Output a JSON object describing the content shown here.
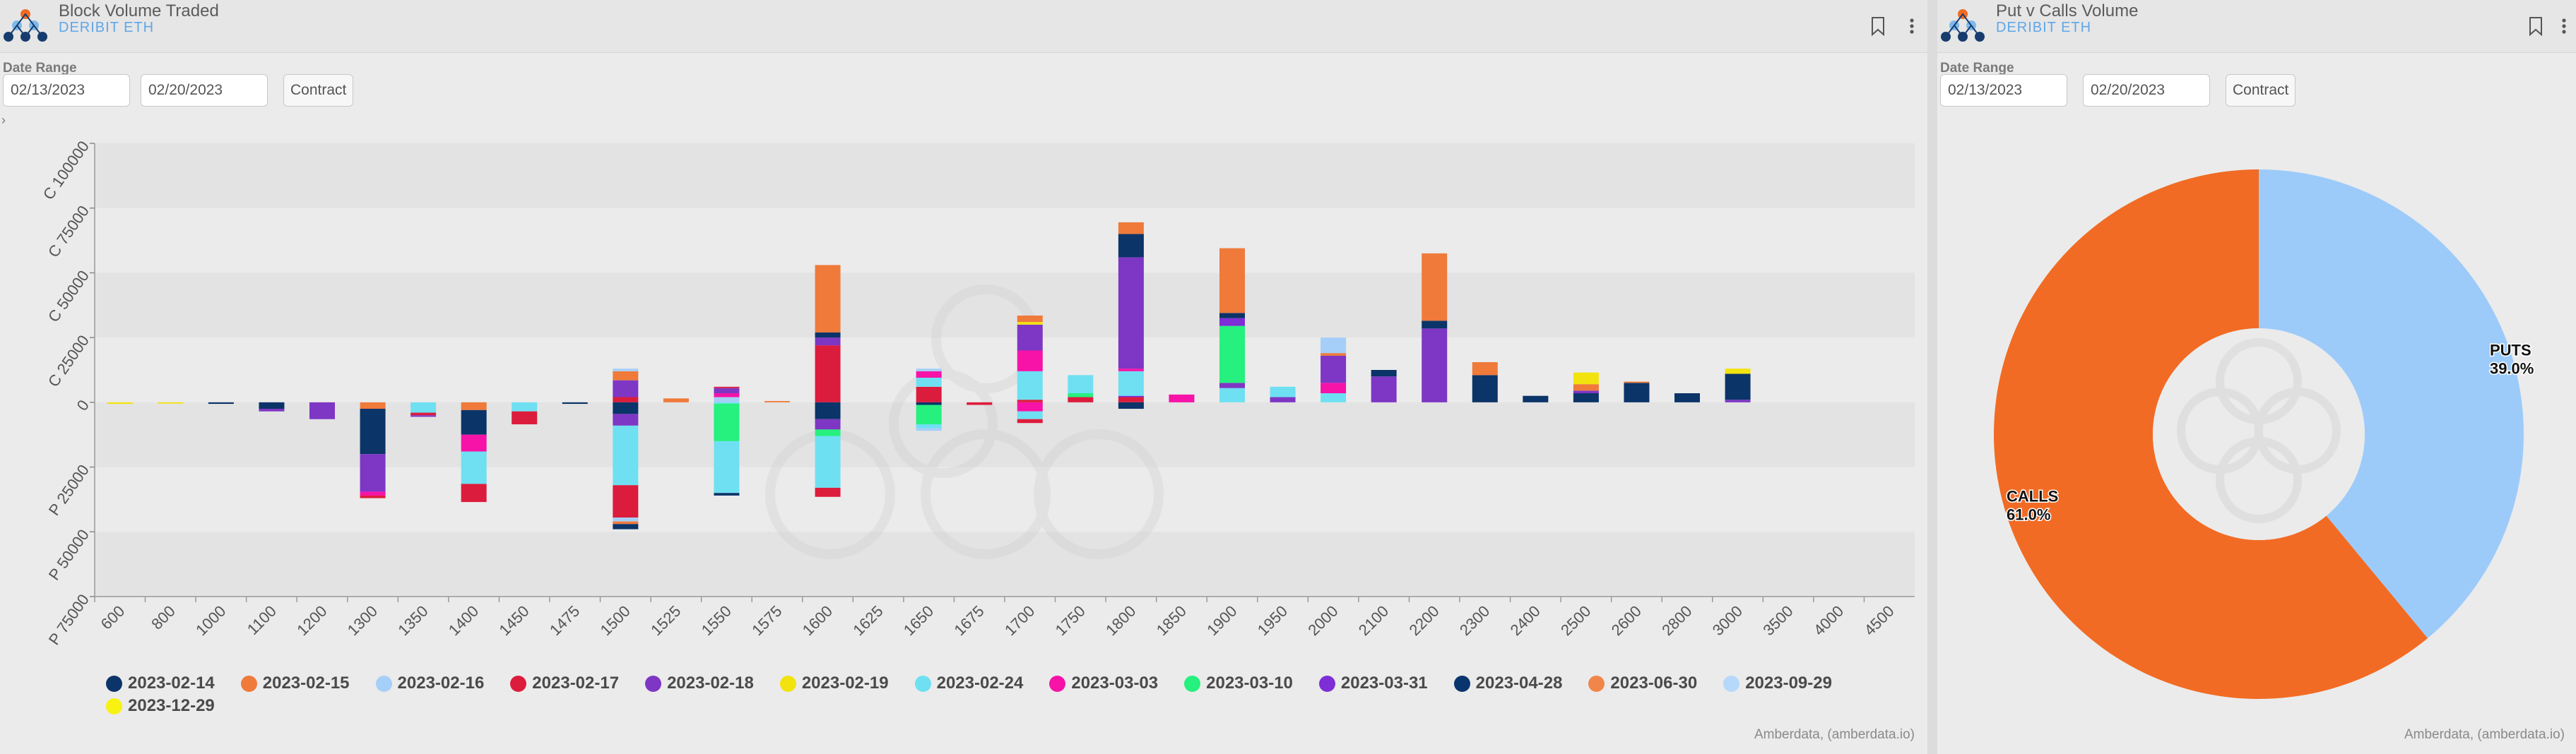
{
  "left_panel": {
    "title": "Block Volume Traded",
    "subtitle": "DERIBIT ETH",
    "date_range_label": "Date Range",
    "start_date": "02/13/2023",
    "end_date": "02/20/2023",
    "contract_button": "Contract",
    "credit": "Amberdata, (amberdata.io)",
    "icons": [
      "bookmark-icon",
      "more-vertical-icon",
      "amberdata-logo-icon",
      "expand-caret-icon"
    ]
  },
  "right_panel": {
    "title": "Put v Calls Volume",
    "subtitle": "DERIBIT ETH",
    "date_range_label": "Date Range",
    "start_date": "02/13/2023",
    "end_date": "02/20/2023",
    "contract_button": "Contract",
    "credit": "Amberdata, (amberdata.io)",
    "icons": [
      "bookmark-icon",
      "more-vertical-icon",
      "amberdata-logo-icon"
    ]
  },
  "colors": {
    "2023-02-14": "#0b3468",
    "2023-02-15": "#ef7a3a",
    "2023-02-16": "#a5cff8",
    "2023-02-17": "#dc1c3c",
    "2023-02-18": "#7e36c4",
    "2023-02-19": "#f2e30e",
    "2023-02-24": "#6ee0f2",
    "2023-03-03": "#f712a8",
    "2023-03-10": "#26f07e",
    "2023-03-31": "#7e2ed6",
    "2023-04-28": "#09356e",
    "2023-06-30": "#f0864a",
    "2023-09-29": "#b6d8fa",
    "2023-12-29": "#f7f212",
    "calls": "#f26b24",
    "puts": "#9ccbfa",
    "chart_band": "#e3e3e3"
  },
  "chart_data": [
    {
      "type": "bar",
      "stacked": true,
      "y_axis_ticks": [
        "C 100000",
        "C 75000",
        "C 50000",
        "C 25000",
        "0",
        "P 25000",
        "P 50000",
        "P 75000"
      ],
      "ylim": [
        -75000,
        100000
      ],
      "grid": "alternating bands",
      "legend_position": "bottom",
      "categories": [
        "600",
        "800",
        "1000",
        "1100",
        "1200",
        "1300",
        "1350",
        "1400",
        "1450",
        "1475",
        "1500",
        "1525",
        "1550",
        "1575",
        "1600",
        "1625",
        "1650",
        "1675",
        "1700",
        "1750",
        "1800",
        "1850",
        "1900",
        "1950",
        "2000",
        "2100",
        "2200",
        "2300",
        "2400",
        "2500",
        "2600",
        "2800",
        "3000",
        "3500",
        "4000",
        "4500"
      ],
      "legend": [
        "2023-02-14",
        "2023-02-15",
        "2023-02-16",
        "2023-02-17",
        "2023-02-18",
        "2023-02-19",
        "2023-02-24",
        "2023-03-03",
        "2023-03-10",
        "2023-03-31",
        "2023-04-28",
        "2023-06-30",
        "2023-09-29",
        "2023-12-29"
      ],
      "bars": [
        {
          "strike": "600",
          "segments": [
            {
              "expiry": "2023-02-19",
              "value": -600
            }
          ]
        },
        {
          "strike": "800",
          "segments": [
            {
              "expiry": "2023-02-19",
              "value": -500
            }
          ]
        },
        {
          "strike": "1000",
          "segments": [
            {
              "expiry": "2023-02-14",
              "value": -600
            }
          ]
        },
        {
          "strike": "1100",
          "segments": [
            {
              "expiry": "2023-02-14",
              "value": -2500
            },
            {
              "expiry": "2023-02-18",
              "value": -1000
            }
          ]
        },
        {
          "strike": "1200",
          "segments": [
            {
              "expiry": "2023-02-18",
              "value": -6500
            }
          ]
        },
        {
          "strike": "1300",
          "segments": [
            {
              "expiry": "2023-02-15",
              "value": -2500
            },
            {
              "expiry": "2023-02-14",
              "value": -17500
            },
            {
              "expiry": "2023-02-18",
              "value": -14500
            },
            {
              "expiry": "2023-03-03",
              "value": -1500
            },
            {
              "expiry": "2023-02-17",
              "value": -1000
            }
          ]
        },
        {
          "strike": "1350",
          "segments": [
            {
              "expiry": "2023-02-24",
              "value": -4000
            },
            {
              "expiry": "2023-02-17",
              "value": -1000
            },
            {
              "expiry": "2023-02-18",
              "value": -600
            }
          ]
        },
        {
          "strike": "1400",
          "segments": [
            {
              "expiry": "2023-02-15",
              "value": -3000
            },
            {
              "expiry": "2023-02-14",
              "value": -9500
            },
            {
              "expiry": "2023-03-03",
              "value": -6500
            },
            {
              "expiry": "2023-02-24",
              "value": -12500
            },
            {
              "expiry": "2023-02-17",
              "value": -7000
            }
          ]
        },
        {
          "strike": "1450",
          "segments": [
            {
              "expiry": "2023-02-24",
              "value": -3500
            },
            {
              "expiry": "2023-02-17",
              "value": -5000
            }
          ]
        },
        {
          "strike": "1475",
          "segments": [
            {
              "expiry": "2023-02-14",
              "value": -600
            }
          ]
        },
        {
          "strike": "1500",
          "segments": [
            {
              "expiry": "2023-02-17",
              "value": 2000
            },
            {
              "expiry": "2023-02-18",
              "value": 6500
            },
            {
              "expiry": "2023-02-15",
              "value": 3500
            },
            {
              "expiry": "2023-02-16",
              "value": 1000
            },
            {
              "expiry": "2023-02-14",
              "value": -4500
            },
            {
              "expiry": "2023-02-18",
              "value": -4500
            },
            {
              "expiry": "2023-02-24",
              "value": -23000
            },
            {
              "expiry": "2023-02-17",
              "value": -12500
            },
            {
              "expiry": "2023-02-16",
              "value": -1500
            },
            {
              "expiry": "2023-02-15",
              "value": -1000
            },
            {
              "expiry": "2023-02-14",
              "value": -2000
            }
          ]
        },
        {
          "strike": "1525",
          "segments": [
            {
              "expiry": "2023-02-15",
              "value": 1500
            }
          ]
        },
        {
          "strike": "1550",
          "segments": [
            {
              "expiry": "2023-02-16",
              "value": 2000
            },
            {
              "expiry": "2023-03-03",
              "value": 1500
            },
            {
              "expiry": "2023-02-18",
              "value": 2000
            },
            {
              "expiry": "2023-02-17",
              "value": 500
            },
            {
              "expiry": "2023-02-24",
              "value": -500
            },
            {
              "expiry": "2023-03-10",
              "value": -14500
            },
            {
              "expiry": "2023-02-24",
              "value": -20000
            },
            {
              "expiry": "2023-02-14",
              "value": -1000
            }
          ]
        },
        {
          "strike": "1575",
          "segments": [
            {
              "expiry": "2023-02-15",
              "value": 500
            }
          ]
        },
        {
          "strike": "1600",
          "segments": [
            {
              "expiry": "2023-02-17",
              "value": 22000
            },
            {
              "expiry": "2023-02-18",
              "value": 3000
            },
            {
              "expiry": "2023-02-14",
              "value": 2000
            },
            {
              "expiry": "2023-02-15",
              "value": 26000
            },
            {
              "expiry": "2023-02-14",
              "value": -6500
            },
            {
              "expiry": "2023-02-18",
              "value": -4000
            },
            {
              "expiry": "2023-03-10",
              "value": -2500
            },
            {
              "expiry": "2023-02-24",
              "value": -20000
            },
            {
              "expiry": "2023-02-17",
              "value": -3500
            }
          ]
        },
        {
          "strike": "1650",
          "segments": [
            {
              "expiry": "2023-02-17",
              "value": 6000
            },
            {
              "expiry": "2023-02-24",
              "value": 3500
            },
            {
              "expiry": "2023-03-03",
              "value": 2500
            },
            {
              "expiry": "2023-02-16",
              "value": 1000
            },
            {
              "expiry": "2023-02-14",
              "value": -1000
            },
            {
              "expiry": "2023-03-10",
              "value": -7500
            },
            {
              "expiry": "2023-02-24",
              "value": -1500
            },
            {
              "expiry": "2023-02-16",
              "value": -1000
            }
          ]
        },
        {
          "strike": "1675",
          "segments": [
            {
              "expiry": "2023-02-17",
              "value": -1000
            }
          ]
        },
        {
          "strike": "1700",
          "segments": [
            {
              "expiry": "2023-02-17",
              "value": 1000
            },
            {
              "expiry": "2023-02-24",
              "value": 11000
            },
            {
              "expiry": "2023-03-03",
              "value": 8000
            },
            {
              "expiry": "2023-02-18",
              "value": 10000
            },
            {
              "expiry": "2023-02-19",
              "value": 1000
            },
            {
              "expiry": "2023-02-15",
              "value": 2500
            },
            {
              "expiry": "2023-03-03",
              "value": -3500
            },
            {
              "expiry": "2023-02-24",
              "value": -3000
            },
            {
              "expiry": "2023-02-17",
              "value": -1500
            }
          ]
        },
        {
          "strike": "1750",
          "segments": [
            {
              "expiry": "2023-02-17",
              "value": 2000
            },
            {
              "expiry": "2023-03-10",
              "value": 1500
            },
            {
              "expiry": "2023-02-24",
              "value": 7000
            }
          ]
        },
        {
          "strike": "1800",
          "segments": [
            {
              "expiry": "2023-02-17",
              "value": 2000
            },
            {
              "expiry": "2023-03-31",
              "value": 500
            },
            {
              "expiry": "2023-02-24",
              "value": 9500
            },
            {
              "expiry": "2023-03-03",
              "value": 1000
            },
            {
              "expiry": "2023-02-18",
              "value": 43000
            },
            {
              "expiry": "2023-02-14",
              "value": 9000
            },
            {
              "expiry": "2023-02-15",
              "value": 4500
            },
            {
              "expiry": "2023-02-14",
              "value": -2500
            }
          ]
        },
        {
          "strike": "1850",
          "segments": [
            {
              "expiry": "2023-03-03",
              "value": 3000
            }
          ]
        },
        {
          "strike": "1900",
          "segments": [
            {
              "expiry": "2023-02-24",
              "value": 5500
            },
            {
              "expiry": "2023-02-18",
              "value": 2000
            },
            {
              "expiry": "2023-03-10",
              "value": 22000
            },
            {
              "expiry": "2023-03-31",
              "value": 3000
            },
            {
              "expiry": "2023-02-14",
              "value": 2000
            },
            {
              "expiry": "2023-02-15",
              "value": 25000
            }
          ]
        },
        {
          "strike": "1950",
          "segments": [
            {
              "expiry": "2023-02-18",
              "value": 2000
            },
            {
              "expiry": "2023-02-24",
              "value": 4000
            }
          ]
        },
        {
          "strike": "2000",
          "segments": [
            {
              "expiry": "2023-02-24",
              "value": 3500
            },
            {
              "expiry": "2023-03-03",
              "value": 4000
            },
            {
              "expiry": "2023-02-18",
              "value": 10500
            },
            {
              "expiry": "2023-02-15",
              "value": 1000
            },
            {
              "expiry": "2023-02-16",
              "value": 6000
            }
          ]
        },
        {
          "strike": "2100",
          "segments": [
            {
              "expiry": "2023-02-18",
              "value": 10000
            },
            {
              "expiry": "2023-02-14",
              "value": 2500
            }
          ]
        },
        {
          "strike": "2200",
          "segments": [
            {
              "expiry": "2023-02-18",
              "value": 28500
            },
            {
              "expiry": "2023-02-14",
              "value": 3000
            },
            {
              "expiry": "2023-02-15",
              "value": 26000
            }
          ]
        },
        {
          "strike": "2300",
          "segments": [
            {
              "expiry": "2023-02-14",
              "value": 10500
            },
            {
              "expiry": "2023-02-15",
              "value": 5000
            }
          ]
        },
        {
          "strike": "2400",
          "segments": [
            {
              "expiry": "2023-02-14",
              "value": 2500
            }
          ]
        },
        {
          "strike": "2500",
          "segments": [
            {
              "expiry": "2023-02-14",
              "value": 3500
            },
            {
              "expiry": "2023-02-18",
              "value": 1000
            },
            {
              "expiry": "2023-02-15",
              "value": 2500
            },
            {
              "expiry": "2023-02-19",
              "value": 4500
            }
          ]
        },
        {
          "strike": "2600",
          "segments": [
            {
              "expiry": "2023-02-14",
              "value": 7500
            },
            {
              "expiry": "2023-02-15",
              "value": 500
            }
          ]
        },
        {
          "strike": "2800",
          "segments": [
            {
              "expiry": "2023-02-14",
              "value": 3500
            }
          ]
        },
        {
          "strike": "3000",
          "segments": [
            {
              "expiry": "2023-02-18",
              "value": 1000
            },
            {
              "expiry": "2023-02-14",
              "value": 10000
            },
            {
              "expiry": "2023-02-19",
              "value": 2000
            }
          ]
        }
      ]
    },
    {
      "type": "pie",
      "donut": true,
      "slices": [
        {
          "name": "PUTS",
          "label": "PUTS",
          "percent_label": "39.0%",
          "value": 39.0
        },
        {
          "name": "CALLS",
          "label": "CALLS",
          "percent_label": "61.0%",
          "value": 61.0
        }
      ]
    }
  ]
}
